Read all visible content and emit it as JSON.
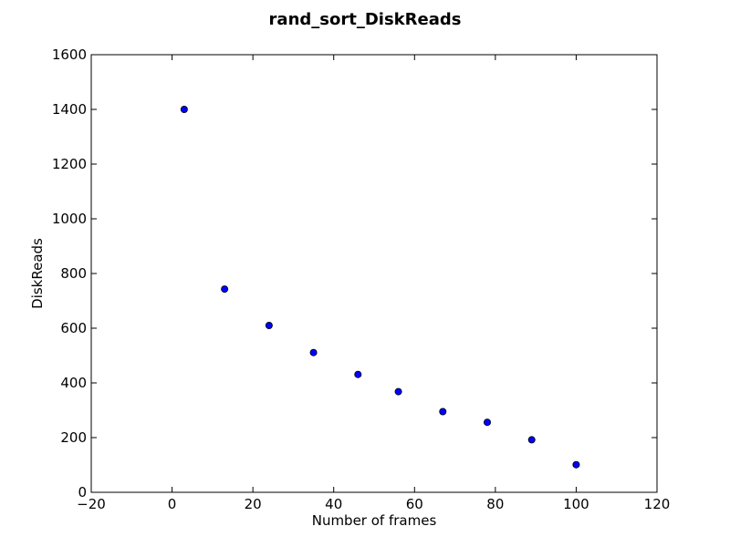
{
  "chart_data": {
    "type": "scatter",
    "title": "rand_sort_DiskReads",
    "xlabel": "Number of frames",
    "ylabel": "DiskReads",
    "xlim": [
      -20,
      120
    ],
    "ylim": [
      0,
      1600
    ],
    "xticks": [
      -20,
      0,
      20,
      40,
      60,
      80,
      100,
      120
    ],
    "yticks": [
      0,
      200,
      400,
      600,
      800,
      1000,
      1200,
      1400,
      1600
    ],
    "xtick_labels": [
      "−20",
      "0",
      "20",
      "40",
      "60",
      "80",
      "100",
      "120"
    ],
    "ytick_labels": [
      "0",
      "200",
      "400",
      "600",
      "800",
      "1000",
      "1200",
      "1400",
      "1600"
    ],
    "grid": false,
    "marker_color": "#0000ff",
    "series": [
      {
        "x": [
          3,
          13,
          24,
          35,
          46,
          56,
          67,
          78,
          89,
          100
        ],
        "y": [
          1400,
          743,
          610,
          511,
          431,
          368,
          295,
          256,
          192,
          101
        ]
      }
    ]
  }
}
